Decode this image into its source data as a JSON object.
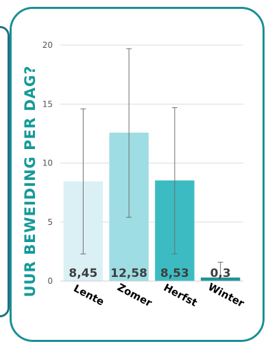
{
  "chart_data": {
    "type": "bar",
    "title": "",
    "ylabel": "UUR BEWEIDING PER DAG?",
    "xlabel": "",
    "categories": [
      "Lente",
      "Zomer",
      "Herfst",
      "Winter"
    ],
    "values": [
      8.45,
      12.58,
      8.53,
      0.3
    ],
    "value_labels": [
      "8,45",
      "12,58",
      "8,53",
      "0,3"
    ],
    "error_bars": {
      "upper": [
        14.6,
        19.7,
        14.7,
        1.6
      ],
      "lower": [
        2.3,
        5.4,
        2.3,
        0
      ]
    },
    "ylim": [
      0,
      20
    ],
    "yticks": [
      0,
      5,
      10,
      15,
      20
    ],
    "grid": true,
    "colors": [
      "#daf0f4",
      "#9edde4",
      "#3cbcc2",
      "#1f9398"
    ]
  }
}
